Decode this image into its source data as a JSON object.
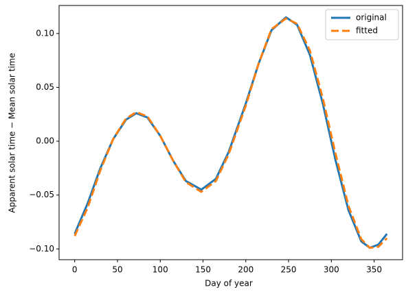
{
  "chart_data": {
    "type": "line",
    "xlabel": "Day of year",
    "ylabel": "Apparent solar time − Mean solar time",
    "x": [
      0,
      15,
      30,
      45,
      60,
      72,
      85,
      100,
      115,
      130,
      148,
      165,
      180,
      200,
      215,
      230,
      247,
      260,
      275,
      290,
      305,
      320,
      335,
      345,
      355,
      365
    ],
    "series": [
      {
        "name": "original",
        "color": "#1f77b4",
        "dash": false,
        "values": [
          -0.086,
          -0.058,
          -0.025,
          0.002,
          0.02,
          0.026,
          0.022,
          0.005,
          -0.018,
          -0.037,
          -0.045,
          -0.035,
          -0.01,
          0.035,
          0.072,
          0.103,
          0.115,
          0.108,
          0.08,
          0.035,
          -0.018,
          -0.064,
          -0.093,
          -0.099,
          -0.096,
          -0.086
        ]
      },
      {
        "name": "fitted",
        "color": "#ff7f0e",
        "dash": true,
        "values": [
          -0.088,
          -0.062,
          -0.027,
          0.002,
          0.021,
          0.027,
          0.023,
          0.005,
          -0.018,
          -0.038,
          -0.047,
          -0.037,
          -0.012,
          0.033,
          0.072,
          0.104,
          0.114,
          0.109,
          0.084,
          0.04,
          -0.012,
          -0.06,
          -0.091,
          -0.099,
          -0.098,
          -0.09
        ]
      }
    ],
    "xlim": [
      -18.25,
      383.25
    ],
    "ylim": [
      -0.11,
      0.126
    ],
    "xticks": [
      0,
      50,
      100,
      150,
      200,
      250,
      300,
      350
    ],
    "yticks": [
      {
        "value": -0.1,
        "label": "−0.10"
      },
      {
        "value": -0.05,
        "label": "−0.05"
      },
      {
        "value": 0.0,
        "label": "0.00"
      },
      {
        "value": 0.05,
        "label": "0.05"
      },
      {
        "value": 0.1,
        "label": "0.10"
      }
    ],
    "legend": "upper right"
  }
}
